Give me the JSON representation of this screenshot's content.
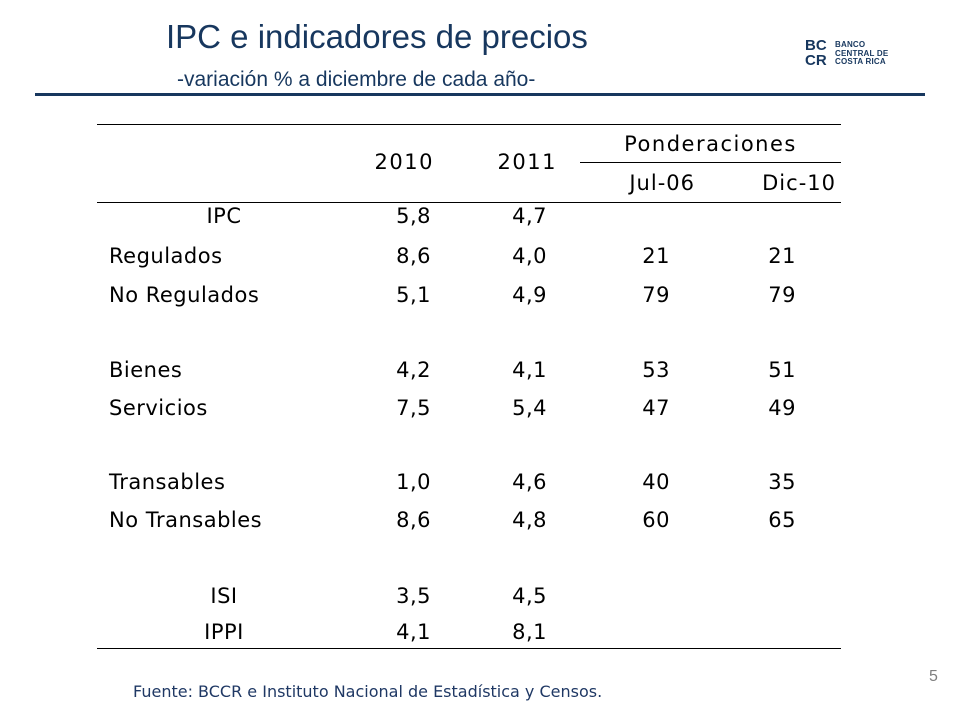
{
  "title": "IPC e indicadores de precios",
  "subtitle": "-variación % a diciembre de cada año-",
  "logo": {
    "mark": "BC CR",
    "lines": [
      "BANCO",
      "CENTRAL DE",
      "COSTA RICA"
    ],
    "brand_color": "#17375e"
  },
  "table": {
    "headers": {
      "year1": "2010",
      "year2": "2011",
      "group": "Ponderaciones",
      "sub1": "Jul-06",
      "sub2": "Dic-10"
    },
    "rows": [
      {
        "label": "IPC",
        "v2010": "5,8",
        "v2011": "4,7",
        "jul06": "",
        "dic10": ""
      },
      {
        "label": "Regulados",
        "v2010": "8,6",
        "v2011": "4,0",
        "jul06": "21",
        "dic10": "21"
      },
      {
        "label": "No Regulados",
        "v2010": "5,1",
        "v2011": "4,9",
        "jul06": "79",
        "dic10": "79"
      },
      {
        "label": "Bienes",
        "v2010": "4,2",
        "v2011": "4,1",
        "jul06": "53",
        "dic10": "51"
      },
      {
        "label": "Servicios",
        "v2010": "7,5",
        "v2011": "5,4",
        "jul06": "47",
        "dic10": "49"
      },
      {
        "label": "Transables",
        "v2010": "1,0",
        "v2011": "4,6",
        "jul06": "40",
        "dic10": "35"
      },
      {
        "label": "No Transables",
        "v2010": "8,6",
        "v2011": "4,8",
        "jul06": "60",
        "dic10": "65"
      },
      {
        "label": "ISI",
        "v2010": "3,5",
        "v2011": "4,5",
        "jul06": "",
        "dic10": ""
      },
      {
        "label": "IPPI",
        "v2010": "4,1",
        "v2011": "8,1",
        "jul06": "",
        "dic10": ""
      }
    ]
  },
  "source": "Fuente: BCCR e Instituto Nacional de Estadística y Censos.",
  "page_number": "5"
}
